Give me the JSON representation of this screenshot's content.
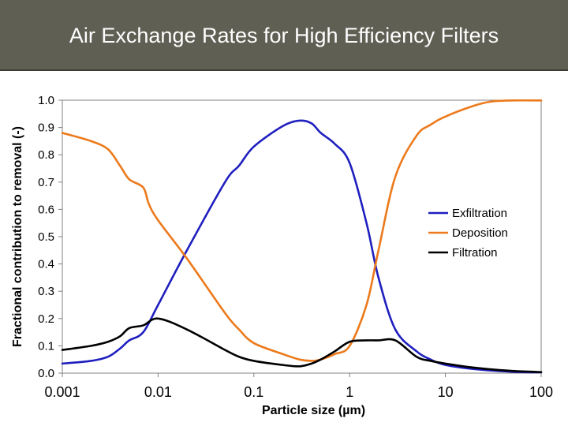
{
  "slide": {
    "title": "Air Exchange Rates for High Efficiency Filters"
  },
  "chart_data": {
    "type": "line",
    "title": "",
    "xlabel": "Particle size (µm)",
    "ylabel": "Fractional contribution to removal (-)",
    "xscale": "log",
    "xlim": [
      0.001,
      100
    ],
    "ylim": [
      0.0,
      1.0
    ],
    "x_tick_labels": [
      "0.001",
      "0.01",
      "0.1",
      "1",
      "10",
      "100"
    ],
    "x_ticks": [
      0.001,
      0.01,
      0.1,
      1,
      10,
      100
    ],
    "y_tick_labels": [
      "0.0",
      "0.1",
      "0.2",
      "0.3",
      "0.4",
      "0.5",
      "0.6",
      "0.7",
      "0.8",
      "0.9",
      "1.0"
    ],
    "y_ticks": [
      0.0,
      0.1,
      0.2,
      0.3,
      0.4,
      0.5,
      0.6,
      0.7,
      0.8,
      0.9,
      1.0
    ],
    "grid": false,
    "legend_position": "right",
    "series": [
      {
        "name": "Exfiltration",
        "color": "#1f1fbf",
        "x": [
          0.001,
          0.002,
          0.003,
          0.004,
          0.005,
          0.007,
          0.01,
          0.02,
          0.05,
          0.07,
          0.1,
          0.2,
          0.3,
          0.4,
          0.5,
          0.7,
          1,
          1.5,
          2,
          3,
          5,
          7,
          10,
          20,
          50,
          100
        ],
        "y": [
          0.035,
          0.045,
          0.06,
          0.09,
          0.12,
          0.15,
          0.25,
          0.45,
          0.7,
          0.76,
          0.83,
          0.905,
          0.925,
          0.915,
          0.88,
          0.84,
          0.77,
          0.55,
          0.35,
          0.16,
          0.08,
          0.05,
          0.03,
          0.015,
          0.005,
          0.003
        ]
      },
      {
        "name": "Deposition",
        "color": "#ec7a1c",
        "x": [
          0.001,
          0.002,
          0.003,
          0.004,
          0.005,
          0.007,
          0.008,
          0.01,
          0.02,
          0.05,
          0.07,
          0.1,
          0.2,
          0.3,
          0.4,
          0.5,
          0.7,
          1,
          1.5,
          2,
          3,
          5,
          7,
          10,
          20,
          30,
          50,
          100
        ],
        "y": [
          0.88,
          0.85,
          0.82,
          0.76,
          0.71,
          0.68,
          0.62,
          0.56,
          0.42,
          0.22,
          0.16,
          0.11,
          0.07,
          0.05,
          0.045,
          0.05,
          0.07,
          0.1,
          0.25,
          0.45,
          0.72,
          0.87,
          0.91,
          0.94,
          0.98,
          0.995,
          0.999,
          0.999
        ]
      },
      {
        "name": "Filtration",
        "color": "#000000",
        "x": [
          0.001,
          0.002,
          0.003,
          0.004,
          0.005,
          0.007,
          0.01,
          0.02,
          0.05,
          0.07,
          0.1,
          0.2,
          0.3,
          0.4,
          0.5,
          0.7,
          1,
          1.5,
          2,
          3,
          5,
          7,
          10,
          20,
          50,
          100
        ],
        "y": [
          0.085,
          0.1,
          0.115,
          0.135,
          0.165,
          0.175,
          0.2,
          0.16,
          0.085,
          0.06,
          0.045,
          0.03,
          0.025,
          0.035,
          0.05,
          0.08,
          0.115,
          0.12,
          0.12,
          0.12,
          0.06,
          0.045,
          0.035,
          0.02,
          0.008,
          0.004
        ]
      }
    ]
  }
}
